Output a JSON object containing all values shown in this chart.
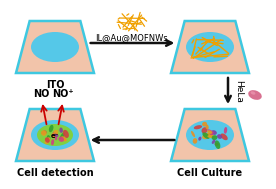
{
  "bg_color": "#ffffff",
  "panel_trap_color": "#f2c4aa",
  "panel_border_color": "#3ec8e0",
  "ellipse_color": "#55c8e8",
  "arrow_color": "#111111",
  "arrow_label": "IL@Au@MOFNWs",
  "hela_label": "HeLa",
  "label_ITO": "ITO",
  "label_cell_detection": "Cell detection",
  "label_cell_culture": "Cell Culture",
  "no_label": "NO",
  "nop_label": "NO⁺",
  "eminus_label": "e⁻",
  "mof_color": "#f0a000",
  "cell_colors": [
    "#d04040",
    "#e89020",
    "#30a030",
    "#8040a0",
    "#d04080",
    "#e0a020"
  ],
  "red_arrow_color": "#cc0000",
  "hela_cell_color": "#d87090"
}
